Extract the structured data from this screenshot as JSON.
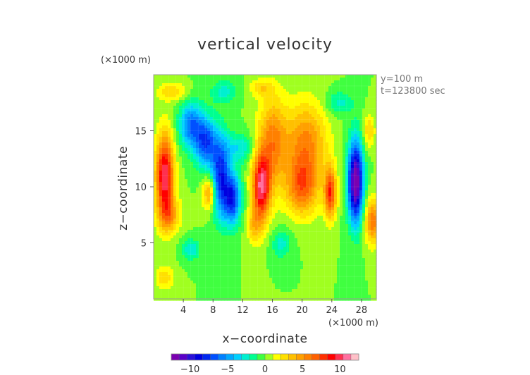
{
  "chart_data": {
    "type": "heatmap",
    "title": "vertical velocity",
    "xlabel": "x−coordinate",
    "ylabel": "z−coordinate",
    "x_unit_label": "(×1000 m)",
    "y_unit_label": "(×1000 m)",
    "annotations": [
      "y=100 m",
      "t=123800 sec"
    ],
    "xlim": [
      0,
      30
    ],
    "ylim": [
      0,
      20
    ],
    "x_ticks": [
      4,
      8,
      12,
      16,
      20,
      24,
      28
    ],
    "x_tick_labels": [
      "4",
      "8",
      "12",
      "16",
      "20",
      "24",
      "28"
    ],
    "y_ticks": [
      5,
      10,
      15
    ],
    "y_tick_labels": [
      "5",
      "10",
      "15"
    ],
    "colorbar": {
      "min": -12.5,
      "max": 12.5,
      "ticks": [
        -10,
        -5,
        0,
        5,
        10
      ],
      "tick_labels": [
        "−10",
        "−5",
        "0",
        "5",
        "10"
      ],
      "colors": [
        "#7a00b0",
        "#5a00c8",
        "#2a10d8",
        "#0000e0",
        "#0028f0",
        "#0050ff",
        "#0080ff",
        "#00a8ff",
        "#00d0ff",
        "#00f0d0",
        "#00ff90",
        "#40ff40",
        "#a0ff20",
        "#ffff00",
        "#ffe000",
        "#ffc000",
        "#ffa000",
        "#ff8000",
        "#ff6000",
        "#ff3000",
        "#ff0000",
        "#ff3050",
        "#ff70a0",
        "#ffc0c8"
      ]
    },
    "features": [
      {
        "x": 1.5,
        "z": 11.0,
        "sx": 1.2,
        "sz": 3.6,
        "value": 10.5
      },
      {
        "x": 2.2,
        "z": 7.5,
        "sx": 1.5,
        "sz": 1.5,
        "value": 4
      },
      {
        "x": 5.0,
        "z": 15.5,
        "sx": 1.5,
        "sz": 2.0,
        "value": -6
      },
      {
        "x": 7.0,
        "z": 14.0,
        "sx": 1.4,
        "sz": 2.2,
        "value": -7
      },
      {
        "x": 9.0,
        "z": 11.0,
        "sx": 1.2,
        "sz": 3.5,
        "value": -8
      },
      {
        "x": 10.6,
        "z": 9.0,
        "sx": 1.1,
        "sz": 2.2,
        "value": -8
      },
      {
        "x": 7.5,
        "z": 9.5,
        "sx": 0.9,
        "sz": 1.5,
        "value": 5
      },
      {
        "x": 11.5,
        "z": 13.5,
        "sx": 2.0,
        "sz": 1.3,
        "value": -3
      },
      {
        "x": 5.0,
        "z": 4.5,
        "sx": 1.2,
        "sz": 0.9,
        "value": -3
      },
      {
        "x": 2.5,
        "z": 18.5,
        "sx": 2.0,
        "sz": 0.8,
        "value": 3
      },
      {
        "x": 14.5,
        "z": 10.0,
        "sx": 1.2,
        "sz": 3.0,
        "value": 10
      },
      {
        "x": 16.0,
        "z": 14.0,
        "sx": 1.9,
        "sz": 4.0,
        "value": 5.5
      },
      {
        "x": 20.5,
        "z": 14.0,
        "sx": 2.8,
        "sz": 3.5,
        "value": 5.5
      },
      {
        "x": 20.0,
        "z": 10.0,
        "sx": 2.2,
        "sz": 2.5,
        "value": 6
      },
      {
        "x": 23.8,
        "z": 9.5,
        "sx": 0.8,
        "sz": 2.2,
        "value": 8
      },
      {
        "x": 13.5,
        "z": 6.5,
        "sx": 1.0,
        "sz": 1.5,
        "value": 3
      },
      {
        "x": 17.2,
        "z": 5.0,
        "sx": 1.3,
        "sz": 1.3,
        "value": -2.5
      },
      {
        "x": 27.2,
        "z": 10.5,
        "sx": 1.0,
        "sz": 3.5,
        "value": -13
      },
      {
        "x": 29.5,
        "z": 7.0,
        "sx": 1.0,
        "sz": 2.0,
        "value": 6
      },
      {
        "x": 29.0,
        "z": 15.0,
        "sx": 0.8,
        "sz": 1.5,
        "value": 3
      },
      {
        "x": 1.5,
        "z": 2.0,
        "sx": 1.2,
        "sz": 1.0,
        "value": 3
      },
      {
        "x": 9.5,
        "z": 18.5,
        "sx": 1.8,
        "sz": 1.0,
        "value": -2.5
      },
      {
        "x": 14.5,
        "z": 18.8,
        "sx": 1.6,
        "sz": 0.8,
        "value": 2.5
      },
      {
        "x": 25.0,
        "z": 17.5,
        "sx": 1.8,
        "sz": 1.0,
        "value": -2.5
      }
    ]
  }
}
